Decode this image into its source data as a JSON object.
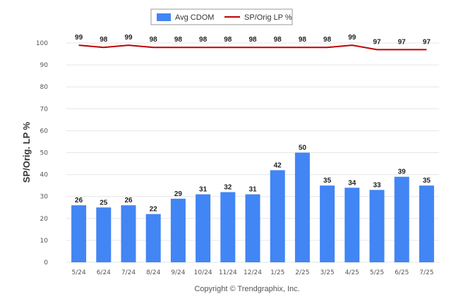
{
  "chart_data": {
    "type": "bar",
    "categories": [
      "5/24",
      "6/24",
      "7/24",
      "8/24",
      "9/24",
      "10/24",
      "11/24",
      "12/24",
      "1/25",
      "2/25",
      "3/25",
      "4/25",
      "5/25",
      "6/25",
      "7/25"
    ],
    "series": [
      {
        "name": "Avg CDOM",
        "type": "bar",
        "color": "#4285f4",
        "values": [
          26,
          25,
          26,
          22,
          29,
          31,
          32,
          31,
          42,
          50,
          35,
          34,
          33,
          39,
          35
        ]
      },
      {
        "name": "SP/Orig LP %",
        "type": "line",
        "color": "#c00000",
        "values": [
          99,
          98,
          99,
          98,
          98,
          98,
          98,
          98,
          98,
          98,
          98,
          99,
          97,
          97,
          97
        ]
      }
    ],
    "ylabel": "SP/Orig. LP %",
    "ylim": [
      0,
      100
    ],
    "yticks": [
      0,
      10,
      20,
      30,
      40,
      50,
      60,
      70,
      80,
      90,
      100
    ],
    "grid": true,
    "legend_position": "top-center"
  },
  "legend": {
    "bar_label": "Avg CDOM",
    "line_label": "SP/Orig LP %"
  },
  "footer": {
    "copyright": "Copyright © Trendgraphix, Inc."
  }
}
